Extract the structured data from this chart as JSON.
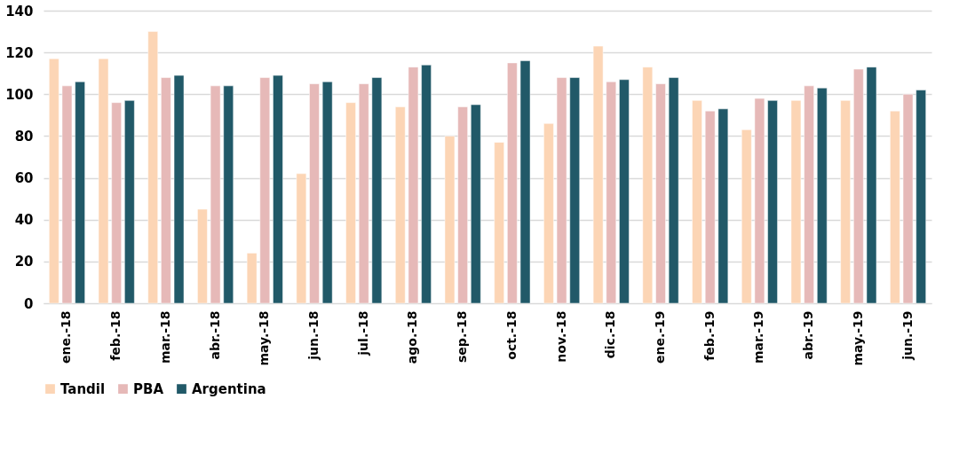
{
  "chart_data": {
    "type": "bar",
    "categories": [
      "ene.-18",
      "feb.-18",
      "mar.-18",
      "abr.-18",
      "may.-18",
      "jun.-18",
      "jul.-18",
      "ago.-18",
      "sep.-18",
      "oct.-18",
      "nov.-18",
      "dic.-18",
      "ene.-19",
      "feb.-19",
      "mar.-19",
      "abr.-19",
      "may.-19",
      "jun.-19"
    ],
    "series": [
      {
        "name": "Tandil",
        "color": "#fcd5b5",
        "values": [
          117,
          117,
          130,
          45,
          24,
          62,
          96,
          94,
          80,
          77,
          86,
          123,
          113,
          97,
          83,
          97,
          97,
          92
        ]
      },
      {
        "name": "PBA",
        "color": "#e6b9b8",
        "values": [
          104,
          96,
          108,
          104,
          108,
          105,
          105,
          113,
          94,
          115,
          108,
          106,
          105,
          92,
          98,
          104,
          112,
          100
        ]
      },
      {
        "name": "Argentina",
        "color": "#215968",
        "values": [
          106,
          97,
          109,
          104,
          109,
          106,
          108,
          114,
          95,
          116,
          108,
          107,
          108,
          93,
          97,
          103,
          113,
          102
        ]
      }
    ],
    "ylim": [
      0,
      140
    ],
    "yticks": [
      0,
      20,
      40,
      60,
      80,
      100,
      120,
      140
    ],
    "grid": "y",
    "legend": "bottom"
  }
}
